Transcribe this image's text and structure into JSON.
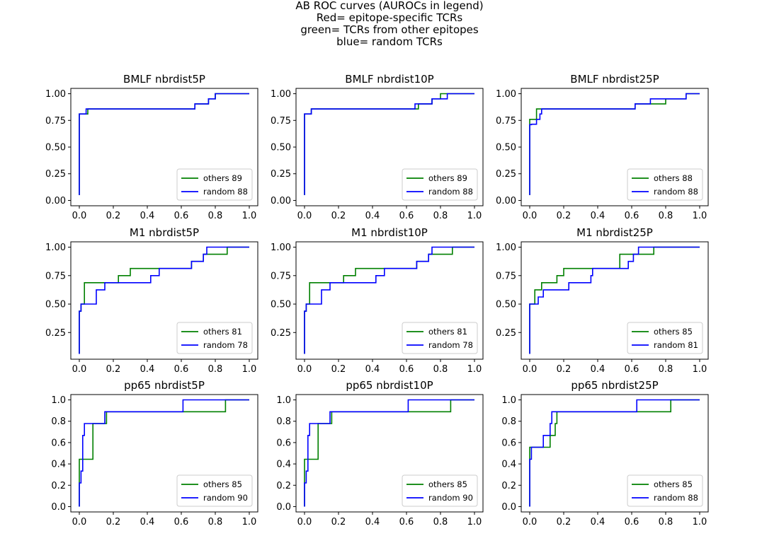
{
  "figure": {
    "title_lines": [
      "AB ROC curves (AUROCs in legend)",
      "Red= epitope-specific TCRs",
      "green= TCRs from other epitopes",
      "blue= random TCRs"
    ],
    "colors": {
      "others": "#008000",
      "random": "#0000ff"
    }
  },
  "chart_data": [
    {
      "type": "line",
      "title": "BMLF nbrdist5P",
      "xlim": [
        0,
        1
      ],
      "ylim": [
        0,
        1
      ],
      "xticks": [
        "0.0",
        "0.2",
        "0.4",
        "0.6",
        "0.8",
        "1.0"
      ],
      "yticks": [
        "0.00",
        "0.25",
        "0.50",
        "0.75",
        "1.00"
      ],
      "legend": "lower right",
      "series": [
        {
          "name": "others 89",
          "color": "#008000",
          "x": [
            0,
            0,
            0.005,
            0.005,
            0.05,
            0.05,
            0.68,
            0.68,
            0.76,
            0.76,
            0.8,
            0.8,
            1.0
          ],
          "y": [
            0.05,
            0.81,
            0.81,
            0.81,
            0.81,
            0.857,
            0.857,
            0.905,
            0.905,
            0.952,
            0.952,
            1.0,
            1.0
          ]
        },
        {
          "name": "random 88",
          "color": "#0000ff",
          "x": [
            0,
            0,
            0.04,
            0.04,
            0.68,
            0.68,
            0.76,
            0.76,
            0.8,
            0.8,
            1.0
          ],
          "y": [
            0.05,
            0.81,
            0.81,
            0.857,
            0.857,
            0.905,
            0.905,
            0.952,
            0.952,
            1.0,
            1.0
          ]
        }
      ]
    },
    {
      "type": "line",
      "title": "BMLF nbrdist10P",
      "xlim": [
        0,
        1
      ],
      "ylim": [
        0,
        1
      ],
      "xticks": [
        "0.0",
        "0.2",
        "0.4",
        "0.6",
        "0.8",
        "1.0"
      ],
      "yticks": [
        "0.00",
        "0.25",
        "0.50",
        "0.75",
        "1.00"
      ],
      "legend": "lower right",
      "series": [
        {
          "name": "others 89",
          "color": "#008000",
          "x": [
            0,
            0,
            0.04,
            0.04,
            0.67,
            0.67,
            0.75,
            0.75,
            0.8,
            0.8,
            1.0
          ],
          "y": [
            0.05,
            0.81,
            0.81,
            0.857,
            0.857,
            0.905,
            0.905,
            0.952,
            0.952,
            1.0,
            1.0
          ]
        },
        {
          "name": "random 88",
          "color": "#0000ff",
          "x": [
            0,
            0,
            0.04,
            0.04,
            0.65,
            0.65,
            0.75,
            0.75,
            0.84,
            0.84,
            1.0
          ],
          "y": [
            0.05,
            0.81,
            0.81,
            0.857,
            0.857,
            0.905,
            0.905,
            0.952,
            0.952,
            1.0,
            1.0
          ]
        }
      ]
    },
    {
      "type": "line",
      "title": "BMLF nbrdist25P",
      "xlim": [
        0,
        1
      ],
      "ylim": [
        0,
        1
      ],
      "xticks": [
        "0.0",
        "0.2",
        "0.4",
        "0.6",
        "0.8",
        "1.0"
      ],
      "yticks": [
        "0.00",
        "0.25",
        "0.50",
        "0.75",
        "1.00"
      ],
      "legend": "lower right",
      "series": [
        {
          "name": "others 88",
          "color": "#008000",
          "x": [
            0,
            0,
            0.04,
            0.04,
            0.62,
            0.62,
            0.8,
            0.8,
            0.92,
            0.92,
            1.0
          ],
          "y": [
            0.05,
            0.76,
            0.76,
            0.857,
            0.857,
            0.905,
            0.905,
            0.952,
            0.952,
            1.0,
            1.0
          ]
        },
        {
          "name": "random 88",
          "color": "#0000ff",
          "x": [
            0,
            0,
            0.01,
            0.01,
            0.04,
            0.04,
            0.06,
            0.06,
            0.07,
            0.07,
            0.62,
            0.62,
            0.71,
            0.71,
            0.92,
            0.92,
            1.0
          ],
          "y": [
            0.05,
            0.71,
            0.71,
            0.714,
            0.714,
            0.76,
            0.76,
            0.81,
            0.81,
            0.857,
            0.857,
            0.905,
            0.905,
            0.952,
            0.952,
            1.0,
            1.0
          ]
        }
      ]
    },
    {
      "type": "line",
      "title": "M1 nbrdist5P",
      "xlim": [
        0,
        1
      ],
      "ylim": [
        0.0625,
        1
      ],
      "xticks": [
        "0.0",
        "0.2",
        "0.4",
        "0.6",
        "0.8",
        "1.0"
      ],
      "yticks": [
        "0.25",
        "0.50",
        "0.75",
        "1.00"
      ],
      "legend": "lower right",
      "series": [
        {
          "name": "others 81",
          "color": "#008000",
          "x": [
            0,
            0,
            0.01,
            0.01,
            0.03,
            0.03,
            0.23,
            0.23,
            0.3,
            0.3,
            0.48,
            0.48,
            0.66,
            0.66,
            0.73,
            0.73,
            0.87,
            0.87,
            1.0
          ],
          "y": [
            0.0625,
            0.4375,
            0.4375,
            0.5,
            0.5,
            0.6875,
            0.6875,
            0.75,
            0.75,
            0.8125,
            0.8125,
            0.8125,
            0.8125,
            0.875,
            0.875,
            0.9375,
            0.9375,
            1.0,
            1.0
          ]
        },
        {
          "name": "random 78",
          "color": "#0000ff",
          "x": [
            0,
            0,
            0.01,
            0.01,
            0.05,
            0.05,
            0.1,
            0.1,
            0.15,
            0.15,
            0.42,
            0.42,
            0.47,
            0.47,
            0.66,
            0.66,
            0.73,
            0.73,
            0.75,
            0.75,
            1.0
          ],
          "y": [
            0.0625,
            0.4375,
            0.4375,
            0.5,
            0.5,
            0.5,
            0.5,
            0.625,
            0.625,
            0.6875,
            0.6875,
            0.75,
            0.75,
            0.8125,
            0.8125,
            0.875,
            0.875,
            0.9375,
            0.9375,
            1.0,
            1.0
          ]
        }
      ]
    },
    {
      "type": "line",
      "title": "M1 nbrdist10P",
      "xlim": [
        0,
        1
      ],
      "ylim": [
        0.0625,
        1
      ],
      "xticks": [
        "0.0",
        "0.2",
        "0.4",
        "0.6",
        "0.8",
        "1.0"
      ],
      "yticks": [
        "0.25",
        "0.50",
        "0.75",
        "1.00"
      ],
      "legend": "lower right",
      "series": [
        {
          "name": "others 81",
          "color": "#008000",
          "x": [
            0,
            0,
            0.01,
            0.01,
            0.03,
            0.03,
            0.23,
            0.23,
            0.3,
            0.3,
            0.48,
            0.48,
            0.66,
            0.66,
            0.73,
            0.73,
            0.87,
            0.87,
            1.0
          ],
          "y": [
            0.0625,
            0.4375,
            0.4375,
            0.5,
            0.5,
            0.6875,
            0.6875,
            0.75,
            0.75,
            0.8125,
            0.8125,
            0.8125,
            0.8125,
            0.875,
            0.875,
            0.9375,
            0.9375,
            1.0,
            1.0
          ]
        },
        {
          "name": "random 78",
          "color": "#0000ff",
          "x": [
            0,
            0,
            0.01,
            0.01,
            0.05,
            0.05,
            0.1,
            0.1,
            0.15,
            0.15,
            0.42,
            0.42,
            0.47,
            0.47,
            0.66,
            0.66,
            0.73,
            0.73,
            0.75,
            0.75,
            1.0
          ],
          "y": [
            0.0625,
            0.4375,
            0.4375,
            0.5,
            0.5,
            0.5,
            0.5,
            0.625,
            0.625,
            0.6875,
            0.6875,
            0.75,
            0.75,
            0.8125,
            0.8125,
            0.875,
            0.875,
            0.9375,
            0.9375,
            1.0,
            1.0
          ]
        }
      ]
    },
    {
      "type": "line",
      "title": "M1 nbrdist25P",
      "xlim": [
        0,
        1
      ],
      "ylim": [
        0.0625,
        1
      ],
      "xticks": [
        "0.0",
        "0.2",
        "0.4",
        "0.6",
        "0.8",
        "1.0"
      ],
      "yticks": [
        "0.25",
        "0.50",
        "0.75",
        "1.00"
      ],
      "legend": "lower right",
      "series": [
        {
          "name": "others 85",
          "color": "#008000",
          "x": [
            0,
            0,
            0.03,
            0.03,
            0.07,
            0.07,
            0.16,
            0.16,
            0.2,
            0.2,
            0.37,
            0.37,
            0.53,
            0.53,
            0.73,
            0.73,
            1.0
          ],
          "y": [
            0.0625,
            0.5,
            0.5,
            0.625,
            0.625,
            0.6875,
            0.6875,
            0.75,
            0.75,
            0.8125,
            0.8125,
            0.8125,
            0.8125,
            0.9375,
            0.9375,
            1.0,
            1.0
          ]
        },
        {
          "name": "random 81",
          "color": "#0000ff",
          "x": [
            0,
            0,
            0.05,
            0.05,
            0.08,
            0.08,
            0.23,
            0.23,
            0.36,
            0.36,
            0.37,
            0.37,
            0.58,
            0.58,
            0.61,
            0.61,
            0.64,
            0.64,
            1.0
          ],
          "y": [
            0.0625,
            0.5,
            0.5,
            0.5625,
            0.5625,
            0.625,
            0.625,
            0.6875,
            0.6875,
            0.75,
            0.75,
            0.8125,
            0.8125,
            0.875,
            0.875,
            0.9375,
            0.9375,
            1.0,
            1.0
          ]
        }
      ]
    },
    {
      "type": "line",
      "title": "pp65 nbrdist5P",
      "xlim": [
        0,
        1
      ],
      "ylim": [
        0,
        1
      ],
      "xticks": [
        "0.0",
        "0.2",
        "0.4",
        "0.6",
        "0.8",
        "1.0"
      ],
      "yticks": [
        "0.0",
        "0.2",
        "0.4",
        "0.6",
        "0.8",
        "1.0"
      ],
      "legend": "lower right",
      "series": [
        {
          "name": "others 85",
          "color": "#008000",
          "x": [
            0,
            0,
            0.02,
            0.02,
            0.08,
            0.08,
            0.16,
            0.16,
            0.86,
            0.86,
            1.0
          ],
          "y": [
            0,
            0.444,
            0.444,
            0.444,
            0.444,
            0.778,
            0.778,
            0.889,
            0.889,
            1.0,
            1.0
          ]
        },
        {
          "name": "random 90",
          "color": "#0000ff",
          "x": [
            0,
            0,
            0.01,
            0.01,
            0.02,
            0.02,
            0.03,
            0.03,
            0.15,
            0.15,
            0.61,
            0.61,
            1.0
          ],
          "y": [
            0,
            0.222,
            0.222,
            0.333,
            0.333,
            0.667,
            0.667,
            0.778,
            0.778,
            0.889,
            0.889,
            1.0,
            1.0
          ]
        }
      ]
    },
    {
      "type": "line",
      "title": "pp65 nbrdist10P",
      "xlim": [
        0,
        1
      ],
      "ylim": [
        0,
        1
      ],
      "xticks": [
        "0.0",
        "0.2",
        "0.4",
        "0.6",
        "0.8",
        "1.0"
      ],
      "yticks": [
        "0.0",
        "0.2",
        "0.4",
        "0.6",
        "0.8",
        "1.0"
      ],
      "legend": "lower right",
      "series": [
        {
          "name": "others 85",
          "color": "#008000",
          "x": [
            0,
            0,
            0.02,
            0.02,
            0.08,
            0.08,
            0.16,
            0.16,
            0.86,
            0.86,
            1.0
          ],
          "y": [
            0,
            0.444,
            0.444,
            0.444,
            0.444,
            0.778,
            0.778,
            0.889,
            0.889,
            1.0,
            1.0
          ]
        },
        {
          "name": "random 90",
          "color": "#0000ff",
          "x": [
            0,
            0,
            0.01,
            0.01,
            0.02,
            0.02,
            0.03,
            0.03,
            0.15,
            0.15,
            0.61,
            0.61,
            1.0
          ],
          "y": [
            0,
            0.222,
            0.222,
            0.333,
            0.333,
            0.667,
            0.667,
            0.778,
            0.778,
            0.889,
            0.889,
            1.0,
            1.0
          ]
        }
      ]
    },
    {
      "type": "line",
      "title": "pp65 nbrdist25P",
      "xlim": [
        0,
        1
      ],
      "ylim": [
        0,
        1
      ],
      "xticks": [
        "0.0",
        "0.2",
        "0.4",
        "0.6",
        "0.8",
        "1.0"
      ],
      "yticks": [
        "0.0",
        "0.2",
        "0.4",
        "0.6",
        "0.8",
        "1.0"
      ],
      "legend": "lower right",
      "series": [
        {
          "name": "others 85",
          "color": "#008000",
          "x": [
            0,
            0,
            0.12,
            0.12,
            0.15,
            0.15,
            0.16,
            0.16,
            0.83,
            0.83,
            1.0
          ],
          "y": [
            0,
            0.556,
            0.556,
            0.667,
            0.667,
            0.778,
            0.778,
            0.889,
            0.889,
            1.0,
            1.0
          ]
        },
        {
          "name": "random 88",
          "color": "#0000ff",
          "x": [
            0,
            0,
            0.01,
            0.01,
            0.02,
            0.02,
            0.08,
            0.08,
            0.12,
            0.12,
            0.13,
            0.13,
            0.63,
            0.63,
            1.0
          ],
          "y": [
            0,
            0.444,
            0.444,
            0.556,
            0.556,
            0.556,
            0.556,
            0.667,
            0.667,
            0.778,
            0.778,
            0.889,
            0.889,
            1.0,
            1.0
          ]
        }
      ]
    }
  ]
}
